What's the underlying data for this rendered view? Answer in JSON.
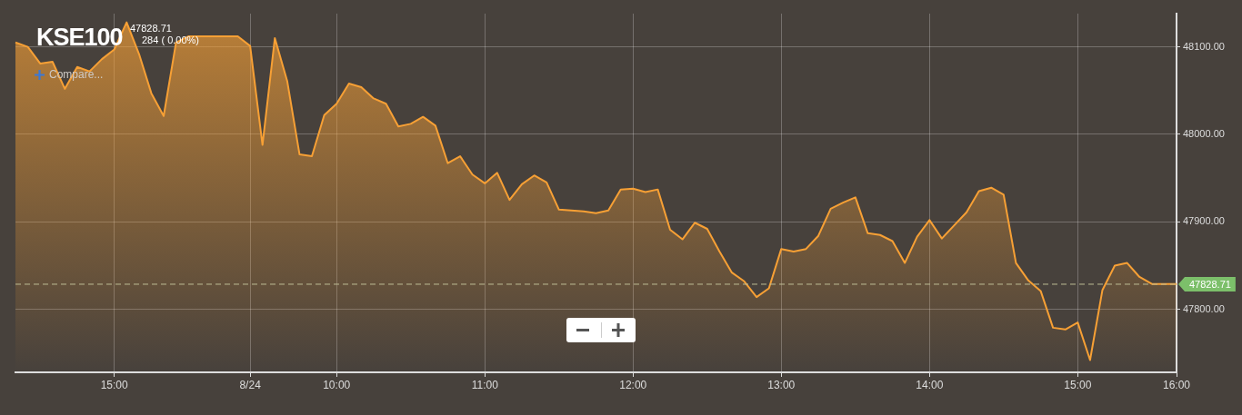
{
  "chart_data": {
    "type": "area",
    "title": "KSE100",
    "annotations": [
      "47828.71",
      "284 ( 0.00%)",
      "Compare..."
    ],
    "categories": [
      null,
      null,
      null,
      null,
      null,
      null,
      null,
      null,
      "15:00",
      null,
      null,
      null,
      null,
      null,
      null,
      null,
      null,
      null,
      null,
      "8/24",
      null,
      null,
      null,
      null,
      null,
      null,
      "10:00",
      null,
      null,
      null,
      null,
      null,
      null,
      null,
      null,
      null,
      null,
      null,
      "11:00",
      null,
      null,
      null,
      null,
      null,
      null,
      null,
      null,
      null,
      null,
      null,
      "12:00",
      null,
      null,
      null,
      null,
      null,
      null,
      null,
      null,
      null,
      null,
      null,
      "13:00",
      null,
      null,
      null,
      null,
      null,
      null,
      null,
      null,
      null,
      null,
      null,
      "14:00",
      null,
      null,
      null,
      null,
      null,
      null,
      null,
      null,
      null,
      null,
      null,
      "15:00",
      null,
      null,
      null,
      null,
      null,
      null,
      null,
      "16:00"
    ],
    "series": [
      {
        "color": "#f7a035",
        "values": [
          48105,
          48100,
          48081,
          48083,
          48052,
          48077,
          48072,
          48086,
          48097,
          48128,
          48092,
          48047,
          48021,
          48105,
          48112,
          48112,
          48112,
          48112,
          48112,
          48101,
          47988,
          48110,
          48061,
          47977,
          47975,
          48022,
          48035,
          48058,
          48054,
          48041,
          48035,
          48009,
          48012,
          48020,
          48010,
          47967,
          47975,
          47954,
          47944,
          47956,
          47925,
          47943,
          47953,
          47945,
          47914,
          47913,
          47912,
          47910,
          47913,
          47937,
          47938,
          47934,
          47937,
          47891,
          47880,
          47899,
          47892,
          47866,
          47842,
          47832,
          47814,
          47824,
          47869,
          47866,
          47869,
          47884,
          47915,
          47922,
          47928,
          47887,
          47885,
          47878,
          47853,
          47883,
          47902,
          47881,
          47896,
          47911,
          47935,
          47939,
          47931,
          47853,
          47833,
          47821,
          47779,
          47777,
          47785,
          47742,
          47822,
          47850,
          47853,
          47837,
          47829,
          47829,
          47829
        ]
      }
    ],
    "ylim": [
      47728,
      48138
    ],
    "yticks": [
      {
        "value": 47800,
        "label": "47800.00"
      },
      {
        "value": 47900,
        "label": "47900.00"
      },
      {
        "value": 48000,
        "label": "48000.00"
      },
      {
        "value": 48100,
        "label": "48100.00"
      }
    ],
    "ref_lines": [
      {
        "axis": "y",
        "value": 47828.71,
        "label": "47828.71",
        "color": "#bebe96",
        "line_style": "dashed"
      }
    ],
    "grid": true,
    "legend": false,
    "marker": "none",
    "line_style": "solid"
  }
}
